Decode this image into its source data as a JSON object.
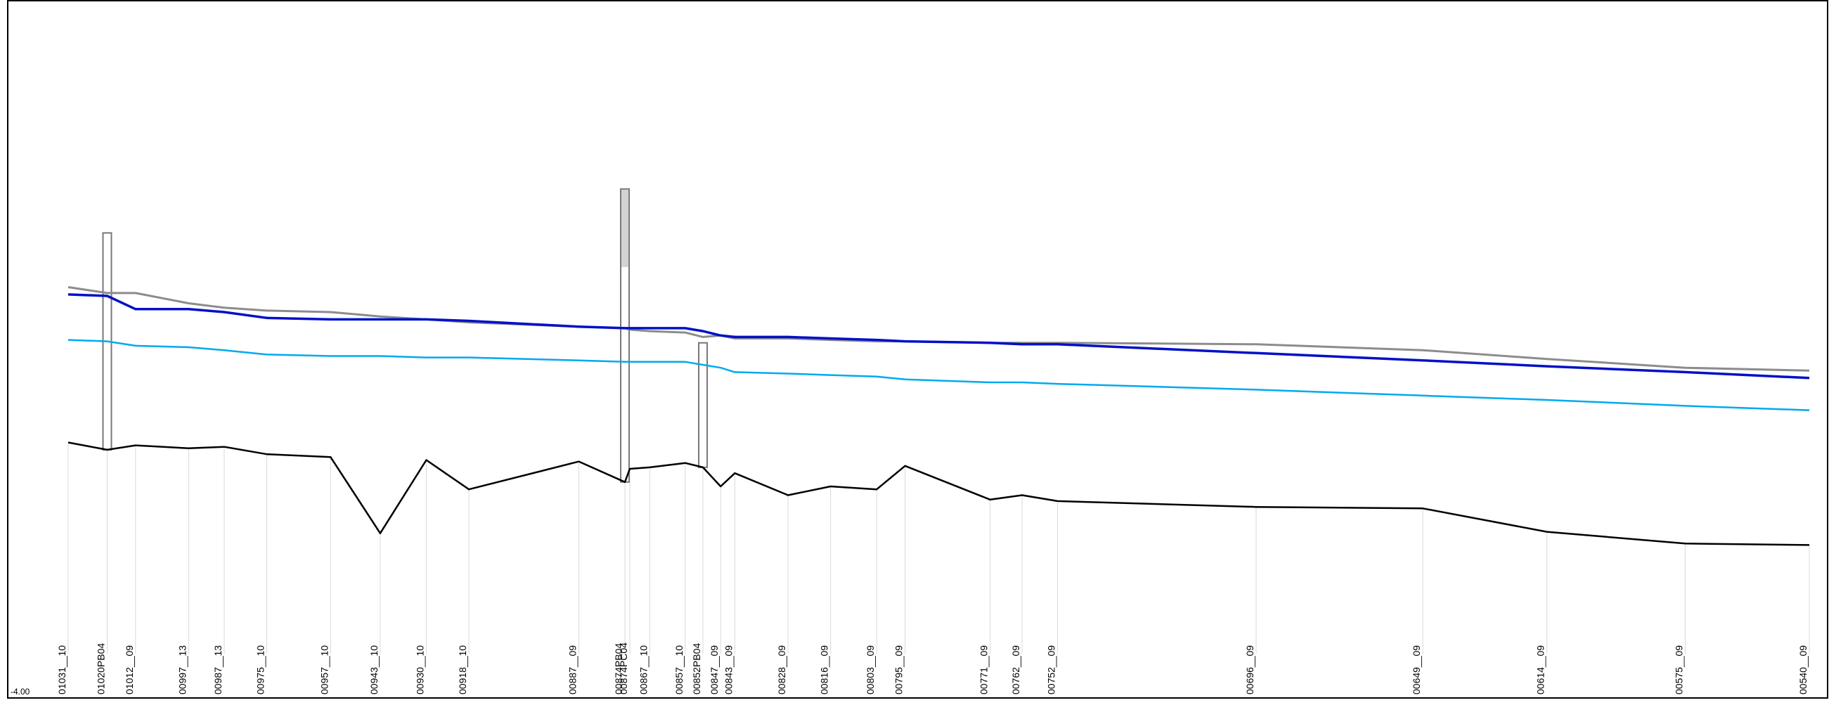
{
  "chart_data": {
    "type": "line",
    "title": "",
    "xlabel": "",
    "ylabel": "",
    "y_min_label": "-4.00",
    "grid": "vertical section lines at each station",
    "legend": "none",
    "colors": {
      "frame": "#000000",
      "bed": "#000000",
      "bank": "#8c8c8c",
      "water_main": "#0010c8",
      "water_secondary": "#00aaee",
      "structure_stroke": "#777777",
      "structure_fill": "#d3d3d3",
      "section_line": "#d9d9d9"
    },
    "sections": [
      {
        "label": "01031__10",
        "x": 1031
      },
      {
        "label": "01020PB04",
        "x": 1020
      },
      {
        "label": "01012__09",
        "x": 1012
      },
      {
        "label": "00997__13",
        "x": 997
      },
      {
        "label": "00987__13",
        "x": 987
      },
      {
        "label": "00975__10",
        "x": 975
      },
      {
        "label": "00957__10",
        "x": 957
      },
      {
        "label": "00943__10",
        "x": 943
      },
      {
        "label": "00930__10",
        "x": 930
      },
      {
        "label": "00918__10",
        "x": 918
      },
      {
        "label": "00887__09",
        "x": 887
      },
      {
        "label": "00874PB04",
        "x": 874
      },
      {
        "label": "00874PC04",
        "x": 874
      },
      {
        "label": "00867__10",
        "x": 867
      },
      {
        "label": "00857__10",
        "x": 857
      },
      {
        "label": "00852PB04",
        "x": 852
      },
      {
        "label": "00847__09",
        "x": 847
      },
      {
        "label": "00843__09",
        "x": 843
      },
      {
        "label": "00828__09",
        "x": 828
      },
      {
        "label": "00816__09",
        "x": 816
      },
      {
        "label": "00803__09",
        "x": 803
      },
      {
        "label": "00795__09",
        "x": 795
      },
      {
        "label": "00771__09",
        "x": 771
      },
      {
        "label": "00762__09",
        "x": 762
      },
      {
        "label": "00752__09",
        "x": 752
      },
      {
        "label": "00696__09",
        "x": 696
      },
      {
        "label": "00649__09",
        "x": 649
      },
      {
        "label": "00614__09",
        "x": 614
      },
      {
        "label": "00575__09",
        "x": 575
      },
      {
        "label": "00540__09",
        "x": 540
      }
    ],
    "series": [
      {
        "role": "bed",
        "values": [
          -2.28,
          -2.33,
          -2.3,
          -2.32,
          -2.31,
          -2.36,
          -2.38,
          -2.9,
          -2.4,
          -2.6,
          -2.41,
          -2.55,
          -2.46,
          -2.45,
          -2.42,
          -2.45,
          -2.58,
          -2.49,
          -2.64,
          -2.58,
          -2.6,
          -2.44,
          -2.67,
          -2.64,
          -2.68,
          -2.72,
          -2.73,
          -2.89,
          -2.97,
          -2.98
        ]
      },
      {
        "role": "bank",
        "values": [
          -1.22,
          -1.26,
          -1.26,
          -1.33,
          -1.36,
          -1.38,
          -1.39,
          -1.42,
          -1.44,
          -1.46,
          -1.49,
          -1.5,
          -1.51,
          -1.52,
          -1.53,
          -1.56,
          -1.55,
          -1.57,
          -1.57,
          -1.58,
          -1.59,
          -1.59,
          -1.6,
          -1.6,
          -1.6,
          -1.61,
          -1.65,
          -1.71,
          -1.77,
          -1.79
        ]
      },
      {
        "role": "water_main",
        "values": [
          -1.27,
          -1.28,
          -1.37,
          -1.37,
          -1.39,
          -1.43,
          -1.44,
          -1.44,
          -1.44,
          -1.45,
          -1.49,
          -1.5,
          -1.5,
          -1.5,
          -1.5,
          -1.52,
          -1.55,
          -1.56,
          -1.56,
          -1.57,
          -1.58,
          -1.59,
          -1.6,
          -1.61,
          -1.61,
          -1.67,
          -1.72,
          -1.76,
          -1.8,
          -1.84
        ]
      },
      {
        "role": "water_secondary",
        "values": [
          -1.58,
          -1.59,
          -1.62,
          -1.63,
          -1.65,
          -1.68,
          -1.69,
          -1.69,
          -1.7,
          -1.7,
          -1.72,
          -1.73,
          -1.73,
          -1.73,
          -1.73,
          -1.75,
          -1.77,
          -1.8,
          -1.81,
          -1.82,
          -1.83,
          -1.85,
          -1.87,
          -1.87,
          -1.88,
          -1.92,
          -1.96,
          -1.99,
          -2.03,
          -2.06
        ]
      }
    ]
  }
}
